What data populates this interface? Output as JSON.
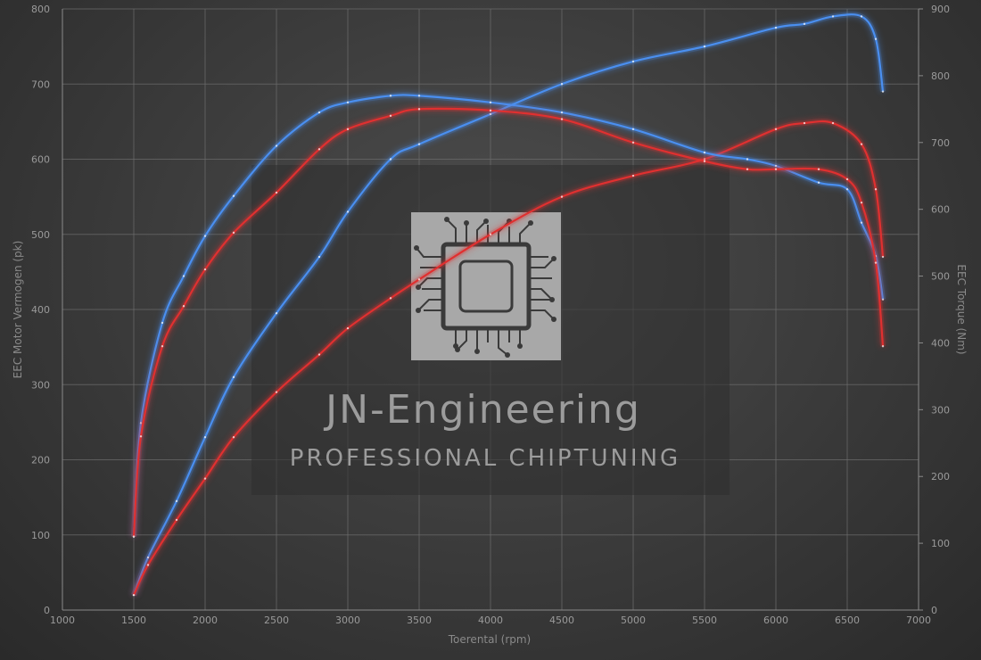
{
  "chart_data": {
    "type": "line",
    "xlabel": "Toerental (rpm)",
    "ylabel_left": "EEC Motor Vermogen (pk)",
    "ylabel_right": "EEC Torque (Nm)",
    "xlim": [
      1000,
      7000
    ],
    "ylim_left": [
      0,
      800
    ],
    "ylim_right": [
      0,
      900
    ],
    "x_ticks": [
      1000,
      1500,
      2000,
      2500,
      3000,
      3500,
      4000,
      4500,
      5000,
      5500,
      6000,
      6500,
      7000
    ],
    "y_ticks_left": [
      0,
      100,
      200,
      300,
      400,
      500,
      600,
      700,
      800
    ],
    "y_ticks_right": [
      0,
      100,
      200,
      300,
      400,
      500,
      600,
      700,
      800,
      900
    ],
    "grid": true,
    "series": [
      {
        "axis": "left",
        "color": "#4a8ff0",
        "x": [
          1500,
          1600,
          1800,
          2000,
          2200,
          2500,
          2800,
          3000,
          3300,
          3500,
          4000,
          4500,
          5000,
          5500,
          6000,
          6200,
          6400,
          6600,
          6700,
          6750
        ],
        "values": [
          20,
          70,
          145,
          230,
          310,
          395,
          470,
          530,
          600,
          620,
          660,
          700,
          730,
          750,
          775,
          780,
          790,
          790,
          760,
          690
        ]
      },
      {
        "axis": "left",
        "color": "#e03030",
        "x": [
          1500,
          1600,
          1800,
          2000,
          2200,
          2500,
          2800,
          3000,
          3300,
          3500,
          4000,
          4500,
          5000,
          5500,
          6000,
          6200,
          6400,
          6600,
          6700,
          6750
        ],
        "values": [
          20,
          60,
          120,
          175,
          230,
          290,
          340,
          375,
          415,
          440,
          500,
          550,
          578,
          600,
          640,
          648,
          648,
          620,
          560,
          470
        ]
      },
      {
        "axis": "right",
        "color": "#4a8ff0",
        "x": [
          1500,
          1550,
          1700,
          1850,
          2000,
          2200,
          2500,
          2800,
          3000,
          3300,
          3500,
          4000,
          4500,
          5000,
          5500,
          5800,
          6000,
          6300,
          6500,
          6600,
          6700,
          6750
        ],
        "values": [
          110,
          280,
          430,
          500,
          560,
          620,
          695,
          745,
          760,
          770,
          770,
          760,
          745,
          720,
          685,
          675,
          665,
          640,
          630,
          580,
          530,
          465
        ]
      },
      {
        "axis": "right",
        "color": "#e03030",
        "x": [
          1500,
          1550,
          1700,
          1850,
          2000,
          2200,
          2500,
          2800,
          3000,
          3300,
          3500,
          4000,
          4500,
          5000,
          5500,
          5800,
          6000,
          6300,
          6500,
          6600,
          6700,
          6750
        ],
        "values": [
          110,
          260,
          395,
          455,
          510,
          565,
          625,
          690,
          720,
          740,
          750,
          748,
          735,
          700,
          672,
          660,
          660,
          660,
          645,
          610,
          520,
          395
        ]
      }
    ]
  },
  "watermark": {
    "title": "JN-Engineering",
    "subtitle": "PROFESSIONAL CHIPTUNING",
    "logo_icon": "circuit-chip-icon"
  }
}
